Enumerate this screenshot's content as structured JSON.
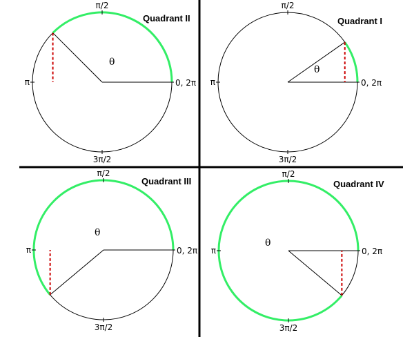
{
  "colors": {
    "arc": "#33ee66",
    "circle": "#000000",
    "dashed": "#cc0000",
    "divider": "#000000"
  },
  "labels": {
    "top": "π/2",
    "left": "π",
    "bottom": "3π/2",
    "right": "0, 2π",
    "theta": "θ"
  },
  "panels": [
    {
      "id": "q2",
      "title": "Quadrant II",
      "angle_deg": 135
    },
    {
      "id": "q1",
      "title": "Quadrant I",
      "angle_deg": 35
    },
    {
      "id": "q3",
      "title": "Quadrant III",
      "angle_deg": 220
    },
    {
      "id": "q4",
      "title": "Quadrant IV",
      "angle_deg": 320
    }
  ]
}
